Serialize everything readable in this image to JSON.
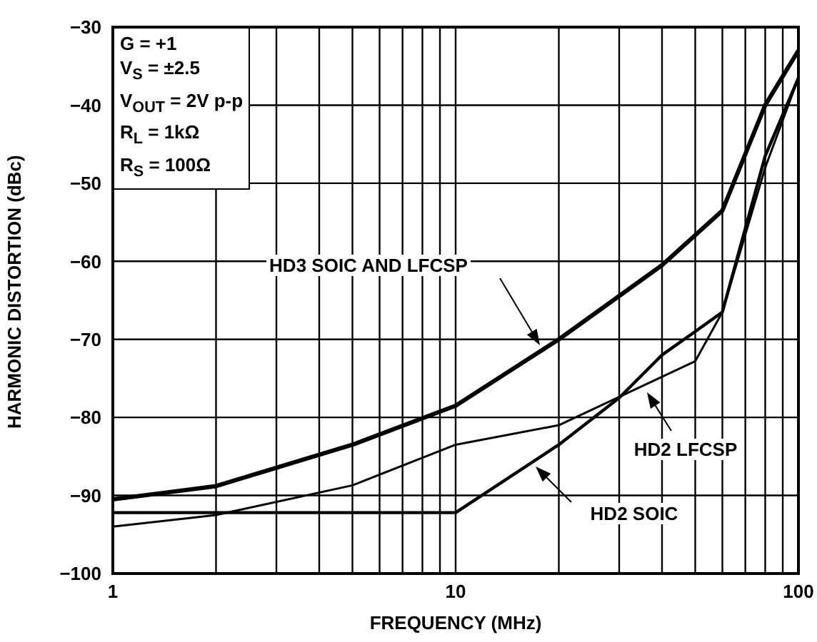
{
  "chart_data": {
    "type": "line",
    "xlabel": "FREQUENCY (MHz)",
    "ylabel": "HARMONIC DISTORTION (dBc)",
    "log": "x",
    "grid": true,
    "legend": false,
    "marker": "none",
    "line_style": "solid",
    "xlim": [
      1,
      100
    ],
    "ylim": [
      -100,
      -30
    ],
    "xticks": [
      1,
      {
        "value": 2,
        "label": null
      },
      {
        "value": 3,
        "label": null
      },
      {
        "value": 4,
        "label": null
      },
      {
        "value": 5,
        "label": null
      },
      {
        "value": 6,
        "label": null
      },
      {
        "value": 7,
        "label": null
      },
      {
        "value": 8,
        "label": null
      },
      {
        "value": 9,
        "label": null
      },
      10,
      {
        "value": 20,
        "label": null
      },
      {
        "value": 30,
        "label": null
      },
      {
        "value": 40,
        "label": null
      },
      {
        "value": 50,
        "label": null
      },
      {
        "value": 60,
        "label": null
      },
      {
        "value": 70,
        "label": null
      },
      {
        "value": 80,
        "label": null
      },
      {
        "value": 90,
        "label": null
      },
      100
    ],
    "yticks": [
      -100,
      -90,
      -80,
      -70,
      -60,
      -50,
      -40,
      -30
    ],
    "series": [
      {
        "color": "#000000",
        "x": [
          1,
          2,
          5,
          10,
          20,
          40,
          60,
          80,
          100
        ],
        "values": [
          -90.5,
          -88.8,
          -83.5,
          -78.5,
          -70,
          -60.5,
          -53.5,
          -40,
          -33
        ]
      },
      {
        "color": "#000000",
        "x": [
          1,
          2,
          5,
          10,
          20,
          50,
          60,
          80,
          100
        ],
        "values": [
          -94,
          -92.5,
          -88.7,
          -83.5,
          -81,
          -72.8,
          -66.5,
          -48,
          -36.5
        ]
      },
      {
        "color": "#000000",
        "x": [
          1,
          10,
          20,
          30,
          40,
          50,
          60,
          80,
          100
        ],
        "values": [
          -92.2,
          -92.2,
          -83.5,
          -77.5,
          -72,
          -69,
          -66.5,
          -46.5,
          -36.5
        ]
      }
    ],
    "annotations": [
      "G = +1",
      "V$_{S}$ = ±2.5",
      "V$_{OUT}$ = 2V p-p",
      "R$_{L}$ = 1kΩ",
      "R$_{S}$ = 100Ω",
      "HD3 SOIC AND LFCSP",
      "HD2 LFCSP",
      "HD2 SOIC"
    ]
  }
}
